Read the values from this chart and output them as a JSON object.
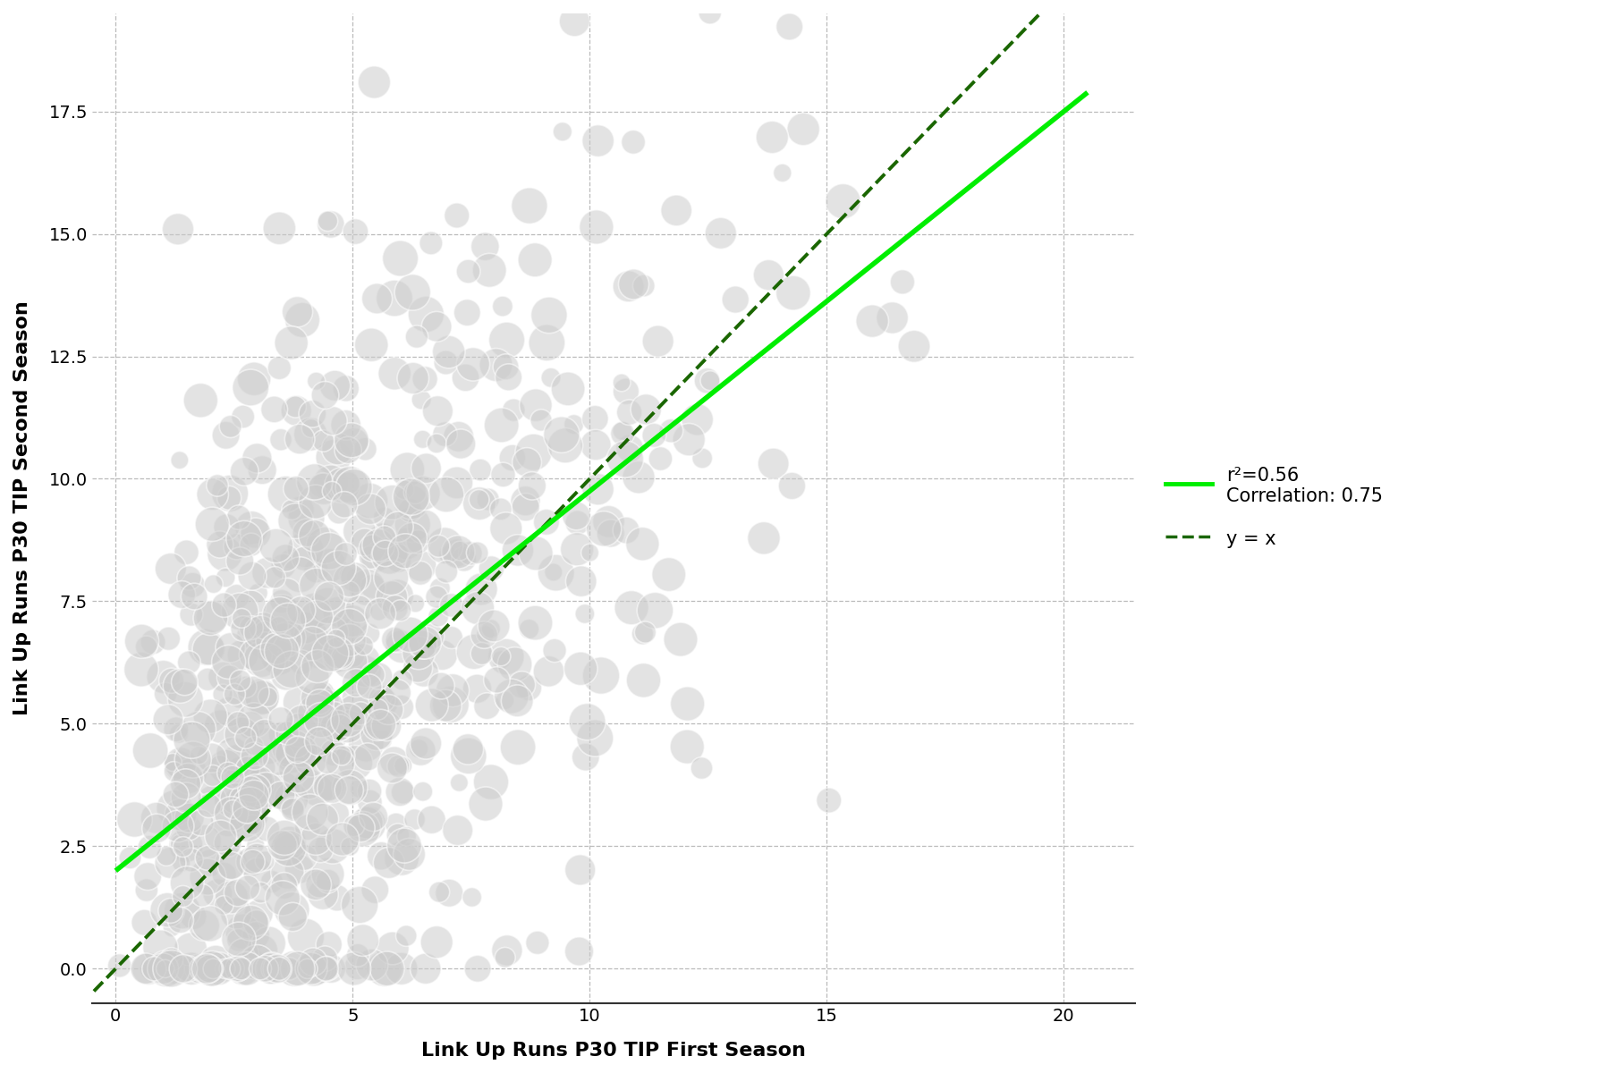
{
  "title": "",
  "xlabel": "Link Up Runs P30 TIP First Season",
  "ylabel": "Link Up Runs P30 TIP Second Season",
  "xlim": [
    -0.5,
    21.5
  ],
  "ylim": [
    -0.7,
    19.5
  ],
  "xticks": [
    0,
    5,
    10,
    15,
    20
  ],
  "yticks": [
    0.0,
    2.5,
    5.0,
    7.5,
    10.0,
    12.5,
    15.0,
    17.5
  ],
  "regression_x_start": 0,
  "regression_x_end": 20.5,
  "regression_intercept": 2.0,
  "regression_slope": 0.775,
  "regression_color": "#00ee00",
  "regression_linewidth": 4.0,
  "yx_line_color": "#1a6600",
  "yx_linewidth": 2.8,
  "r_squared": "r²=0.56",
  "correlation_text": "Correlation: 0.75",
  "yx_label": "y = x",
  "scatter_color": "#cccccc",
  "scatter_alpha": 0.55,
  "scatter_edgecolor": "#ffffff",
  "scatter_edgewidth": 1.2,
  "scatter_size_min": 200,
  "scatter_size_max": 900,
  "grid_color": "#bbbbbb",
  "grid_linestyle": "--",
  "background_color": "#ffffff",
  "legend_fontsize": 15,
  "axis_label_fontsize": 16,
  "tick_fontsize": 14,
  "seed": 42,
  "n_points": 800
}
